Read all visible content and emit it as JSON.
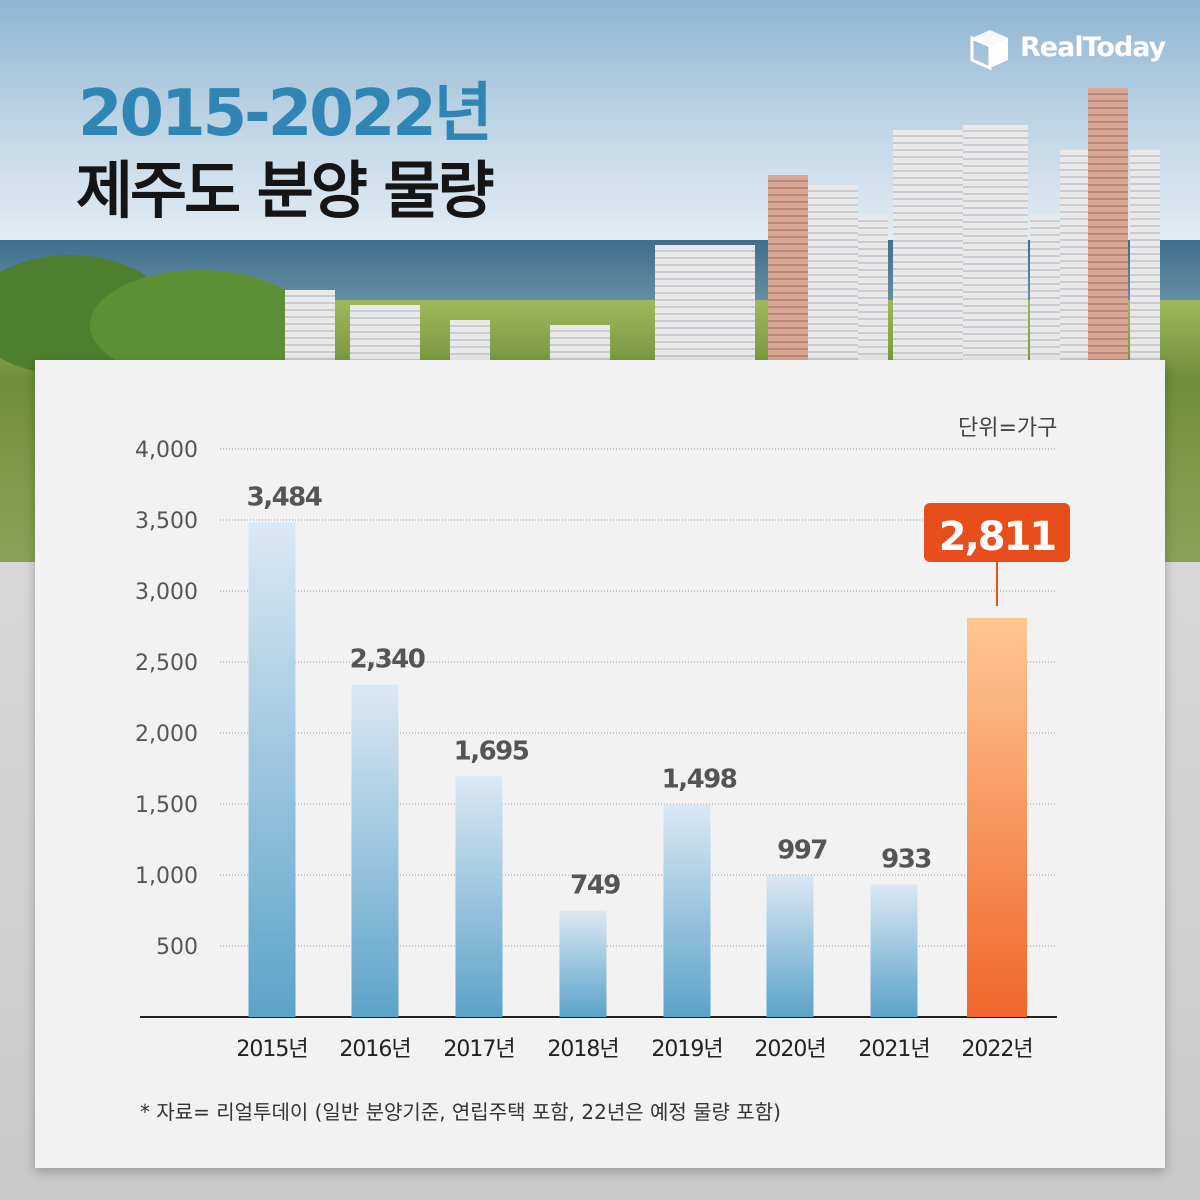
{
  "header": {
    "title_line1": "2015-2022년",
    "title_line2": "제주도 분양 물량",
    "logo": "RealToday"
  },
  "colors": {
    "bar_top": "#dbe8f4",
    "bar_bottom": "#5ba3c9",
    "highlight_top": "#ffc893",
    "highlight_bottom": "#f0652b",
    "callout": "#e84e1b",
    "title_blue": "#2f86b5"
  },
  "chart_data": {
    "type": "bar",
    "categories": [
      "2015년",
      "2016년",
      "2017년",
      "2018년",
      "2019년",
      "2020년",
      "2021년",
      "2022년"
    ],
    "values": [
      3484,
      2340,
      1695,
      749,
      1498,
      997,
      933,
      2811
    ],
    "value_labels": [
      "3,484",
      "2,340",
      "1,695",
      "749",
      "1,498",
      "997",
      "933",
      "2,811"
    ],
    "highlight_index": 7,
    "ylim": [
      0,
      4000
    ],
    "yticks": [
      500,
      1000,
      1500,
      2000,
      2500,
      3000,
      3500,
      4000
    ],
    "ytick_labels": [
      "500",
      "1,000",
      "1,500",
      "2,000",
      "2,500",
      "3,000",
      "3,500",
      "4,000"
    ],
    "unit": "단위=가구",
    "grid": true,
    "note": "* 자료= 리얼투데이 (일반 분양기준, 연립주택 포함, 22년은 예정 물량 포함)"
  }
}
